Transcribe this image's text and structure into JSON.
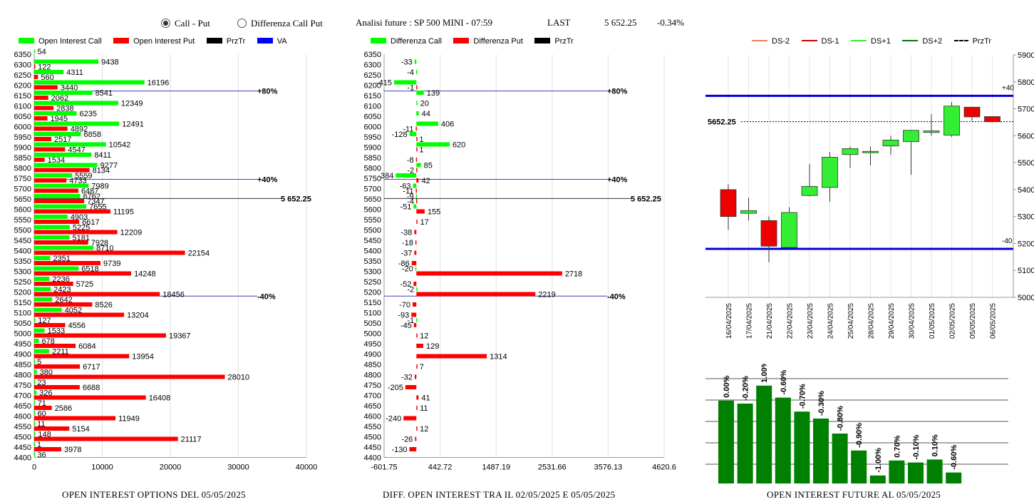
{
  "header": {
    "radio_call_put": "Call - Put",
    "radio_diff": "Differenza Call Put",
    "title": "Analisi future : SP 500 MINI - 07:59",
    "last_label": "LAST",
    "last_value": "5 652.25",
    "change": "-0.34%"
  },
  "panel1": {
    "legend": [
      {
        "label": "Open Interest Call",
        "color": "#00ff00"
      },
      {
        "label": "Open Interest Put",
        "color": "#ff0000"
      },
      {
        "label": "PrzTr",
        "color": "#000000"
      },
      {
        "label": "VA",
        "color": "#0000ff"
      }
    ],
    "caption": "OPEN INTEREST OPTIONS DEL 05/05/2025",
    "chart_data": {
      "type": "bar",
      "orientation": "horizontal",
      "categories": [
        "6350",
        "6300",
        "6250",
        "6200",
        "6150",
        "6100",
        "6050",
        "6000",
        "5950",
        "5900",
        "5850",
        "5800",
        "5750",
        "5700",
        "5650",
        "5600",
        "5550",
        "5500",
        "5450",
        "5400",
        "5350",
        "5300",
        "5250",
        "5200",
        "5150",
        "5100",
        "5050",
        "5000",
        "4950",
        "4900",
        "4850",
        "4800",
        "4750",
        "4700",
        "4650",
        "4600",
        "4550",
        "4500",
        "4450",
        "4400"
      ],
      "series": [
        {
          "name": "Open Interest Call",
          "color": "#00ff00",
          "values": [
            54,
            9438,
            4311,
            16196,
            8541,
            12349,
            6235,
            12491,
            6858,
            10542,
            8411,
            9277,
            5559,
            7989,
            6762,
            7655,
            4903,
            5225,
            5181,
            8710,
            2351,
            6518,
            2236,
            2423,
            2642,
            4052,
            127,
            1533,
            678,
            2211,
            5,
            380,
            23,
            326,
            71,
            60,
            11,
            148,
            1,
            36
          ]
        },
        {
          "name": "Open Interest Put",
          "color": "#ff0000",
          "values": [
            null,
            122,
            560,
            3440,
            2062,
            2838,
            1945,
            4892,
            2517,
            4547,
            1534,
            8134,
            4733,
            6487,
            7347,
            11195,
            6617,
            12209,
            7928,
            22154,
            9739,
            14248,
            5725,
            18456,
            8526,
            13204,
            4556,
            19367,
            6084,
            13954,
            6717,
            28010,
            6688,
            16408,
            2586,
            11949,
            5154,
            21117,
            3978,
            null
          ]
        }
      ],
      "xlim": [
        0,
        40000
      ],
      "xticks": [
        "0",
        "10000",
        "20000",
        "30000",
        "40000"
      ],
      "levels": [
        {
          "label": "+80%",
          "y": 6172
        },
        {
          "label": "+40%",
          "y": 5745
        },
        {
          "label": "-40%",
          "y": 5180
        }
      ],
      "przTr": {
        "label": "5 652.25",
        "y": 5652.25
      }
    }
  },
  "panel2": {
    "legend": [
      {
        "label": "Differenza Call",
        "color": "#00ff00"
      },
      {
        "label": "Differenza Put",
        "color": "#ff0000"
      },
      {
        "label": "PrzTr",
        "color": "#000000"
      }
    ],
    "caption": "DIFF. OPEN INTEREST TRA IL 02/05/2025 E 05/05/2025",
    "chart_data": {
      "type": "bar",
      "orientation": "horizontal",
      "categories": [
        "6350",
        "6300",
        "6250",
        "6200",
        "6150",
        "6100",
        "6050",
        "6000",
        "5950",
        "5900",
        "5850",
        "5800",
        "5750",
        "5700",
        "5650",
        "5600",
        "5550",
        "5500",
        "5450",
        "5400",
        "5350",
        "5300",
        "5250",
        "5200",
        "5150",
        "5100",
        "5050",
        "5000",
        "4950",
        "4900",
        "4850",
        "4800",
        "4750",
        "4700",
        "4650",
        "4600",
        "4550",
        "4500",
        "4450",
        "4400"
      ],
      "series": [
        {
          "name": "Differenza Call",
          "color": "#00ff00",
          "values": [
            null,
            -33,
            -4,
            -415,
            139,
            20,
            44,
            406,
            -128,
            620,
            null,
            85,
            -384,
            -63,
            -9,
            -51,
            null,
            null,
            null,
            null,
            null,
            -20,
            null,
            -2,
            null,
            null,
            -1,
            null,
            null,
            null,
            null,
            null,
            null,
            null,
            null,
            null,
            null,
            null,
            null,
            null
          ]
        },
        {
          "name": "Differenza Put",
          "color": "#ff0000",
          "values": [
            null,
            null,
            null,
            -1,
            null,
            null,
            null,
            -11,
            1,
            1,
            -8,
            -2,
            42,
            -11,
            -4,
            155,
            17,
            -38,
            -18,
            -37,
            -86,
            2718,
            -52,
            2219,
            -70,
            -93,
            -45,
            12,
            129,
            1314,
            7,
            -32,
            -205,
            41,
            11,
            -240,
            12,
            -26,
            -130,
            null
          ]
        }
      ],
      "xlim": [
        -601.75,
        4620.6
      ],
      "xticks": [
        "-601.75",
        "442.72",
        "1487.19",
        "2531.66",
        "3576.13",
        "4620.6"
      ],
      "levels": [
        {
          "label": "+80%",
          "y": 6172
        },
        {
          "label": "+40%",
          "y": 5745
        },
        {
          "label": "-40%",
          "y": 5180
        }
      ],
      "przTr": {
        "label": "5 652.25",
        "y": 5652.25
      }
    }
  },
  "panel3": {
    "legend": [
      {
        "label": "DS-2",
        "color": "#f08060"
      },
      {
        "label": "DS-1",
        "color": "#cc0000"
      },
      {
        "label": "DS+1",
        "color": "#33ee33"
      },
      {
        "label": "DS+2",
        "color": "#007700"
      },
      {
        "label": "PrzTr",
        "color": "#000000"
      }
    ],
    "chart_data": {
      "type": "candlestick",
      "x": [
        "16/04/2025",
        "17/04/2025",
        "21/04/2025",
        "22/04/2025",
        "23/04/2025",
        "24/04/2025",
        "25/04/2025",
        "28/04/2025",
        "29/04/2025",
        "30/04/2025",
        "01/05/2025",
        "02/05/2025",
        "05/05/2025",
        "06/05/2025"
      ],
      "ohlc": [
        [
          5400,
          5420,
          5250,
          5300
        ],
        [
          5312,
          5370,
          5285,
          5322
        ],
        [
          5285,
          5300,
          5130,
          5190
        ],
        [
          5185,
          5335,
          5180,
          5315
        ],
        [
          5378,
          5495,
          5375,
          5412
        ],
        [
          5408,
          5540,
          5355,
          5520
        ],
        [
          5530,
          5560,
          5480,
          5552
        ],
        [
          5542,
          5560,
          5490,
          5542
        ],
        [
          5562,
          5600,
          5530,
          5584
        ],
        [
          5578,
          5622,
          5455,
          5620
        ],
        [
          5612,
          5680,
          5600,
          5618
        ],
        [
          5602,
          5725,
          5595,
          5710
        ],
        [
          5706,
          5706,
          5655,
          5670
        ],
        [
          5671,
          5671,
          5650,
          5652
        ]
      ],
      "ylim": [
        5000,
        5900
      ],
      "yticks": [
        "5000",
        "5100",
        "5200",
        "5300",
        "5400",
        "5500",
        "5600",
        "5700",
        "5800",
        "5900"
      ],
      "levels": [
        {
          "label": "+40",
          "y": 5748
        },
        {
          "label": "-40",
          "y": 5180
        }
      ],
      "przTr": {
        "label": "5652.25",
        "y": 5652.25
      }
    }
  },
  "panel4": {
    "caption": "OPEN INTEREST FUTURE AL 05/05/2025",
    "chart_data": {
      "type": "bar",
      "labels": [
        "0.00%",
        "-0.20%",
        "1.00%",
        "-0.60%",
        "-0.70%",
        "-0.30%",
        "-0.80%",
        "-0.90%",
        "-1.00%",
        "0.70%",
        "-0.10%",
        "0.10%",
        "-0.60%"
      ],
      "values": [
        0.83,
        0.8,
        0.98,
        0.86,
        0.72,
        0.65,
        0.5,
        0.33,
        0.08,
        0.23,
        0.21,
        0.24,
        0.11
      ]
    }
  }
}
